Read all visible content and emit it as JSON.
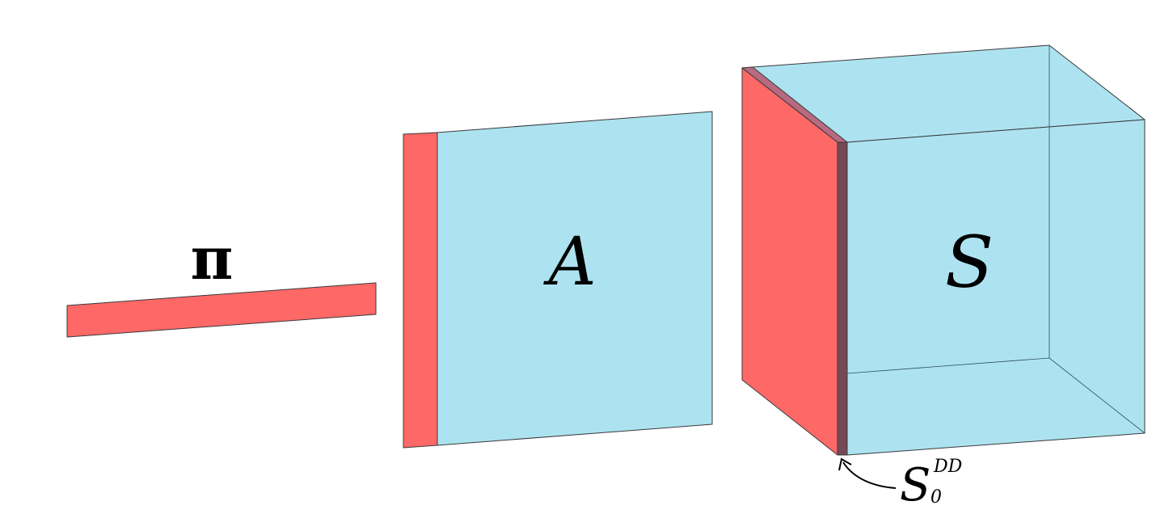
{
  "colors": {
    "red": "#fe6867",
    "blue": "#ade3f1",
    "purple_edge": "#734a55",
    "purple_top": "#b76a80",
    "outline": "#3a3a3a"
  },
  "labels": {
    "pi": "π",
    "A": "A",
    "S": "S",
    "s0_main": "S",
    "s0_sub": "0",
    "s0_sup": "DD"
  }
}
